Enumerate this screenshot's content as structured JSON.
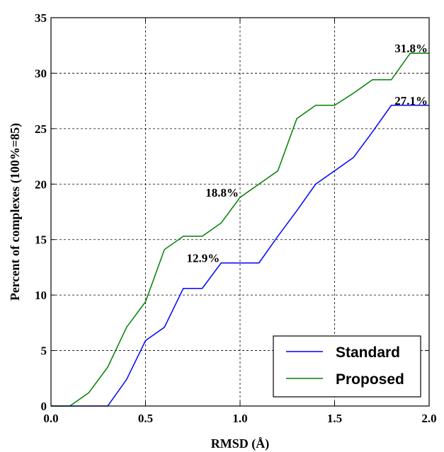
{
  "chart_data": {
    "type": "line",
    "xlabel": "RMSD (Å)",
    "ylabel": "Percent of complexes (100%=85)",
    "xlim": [
      0.0,
      2.0
    ],
    "ylim": [
      0,
      35
    ],
    "x_ticks": [
      "0.0",
      "0.5",
      "1.0",
      "1.5",
      "2.0"
    ],
    "y_ticks": [
      "0",
      "5",
      "10",
      "15",
      "20",
      "25",
      "30",
      "35"
    ],
    "grid": true,
    "legend_position": "bottom-right",
    "series": [
      {
        "name": "Standard",
        "color": "#0000ff",
        "x": [
          0.0,
          0.1,
          0.2,
          0.3,
          0.4,
          0.5,
          0.6,
          0.7,
          0.8,
          0.9,
          1.0,
          1.1,
          1.2,
          1.3,
          1.4,
          1.5,
          1.6,
          1.7,
          1.8,
          1.9,
          2.0
        ],
        "y": [
          0,
          0,
          0,
          0,
          2.4,
          5.9,
          7.1,
          10.6,
          10.6,
          12.9,
          12.9,
          12.9,
          15.3,
          17.6,
          20.0,
          21.2,
          22.4,
          24.7,
          27.1,
          27.1,
          27.1
        ]
      },
      {
        "name": "Proposed",
        "color": "#008000",
        "x": [
          0.0,
          0.1,
          0.2,
          0.3,
          0.4,
          0.5,
          0.6,
          0.7,
          0.8,
          0.9,
          1.0,
          1.1,
          1.2,
          1.3,
          1.4,
          1.5,
          1.6,
          1.7,
          1.8,
          1.9,
          2.0
        ],
        "y": [
          0,
          0,
          1.2,
          3.5,
          7.1,
          9.4,
          14.1,
          15.3,
          15.3,
          16.5,
          18.8,
          20.0,
          21.2,
          25.9,
          27.1,
          27.1,
          28.2,
          29.4,
          29.4,
          31.8,
          31.8
        ]
      }
    ],
    "annotations": [
      {
        "text": "12.9%",
        "x": 0.9,
        "y": 12.9
      },
      {
        "text": "18.8%",
        "x": 1.0,
        "y": 18.8
      },
      {
        "text": "27.1%",
        "x": 2.0,
        "y": 27.1
      },
      {
        "text": "31.8%",
        "x": 2.0,
        "y": 31.8
      }
    ]
  }
}
